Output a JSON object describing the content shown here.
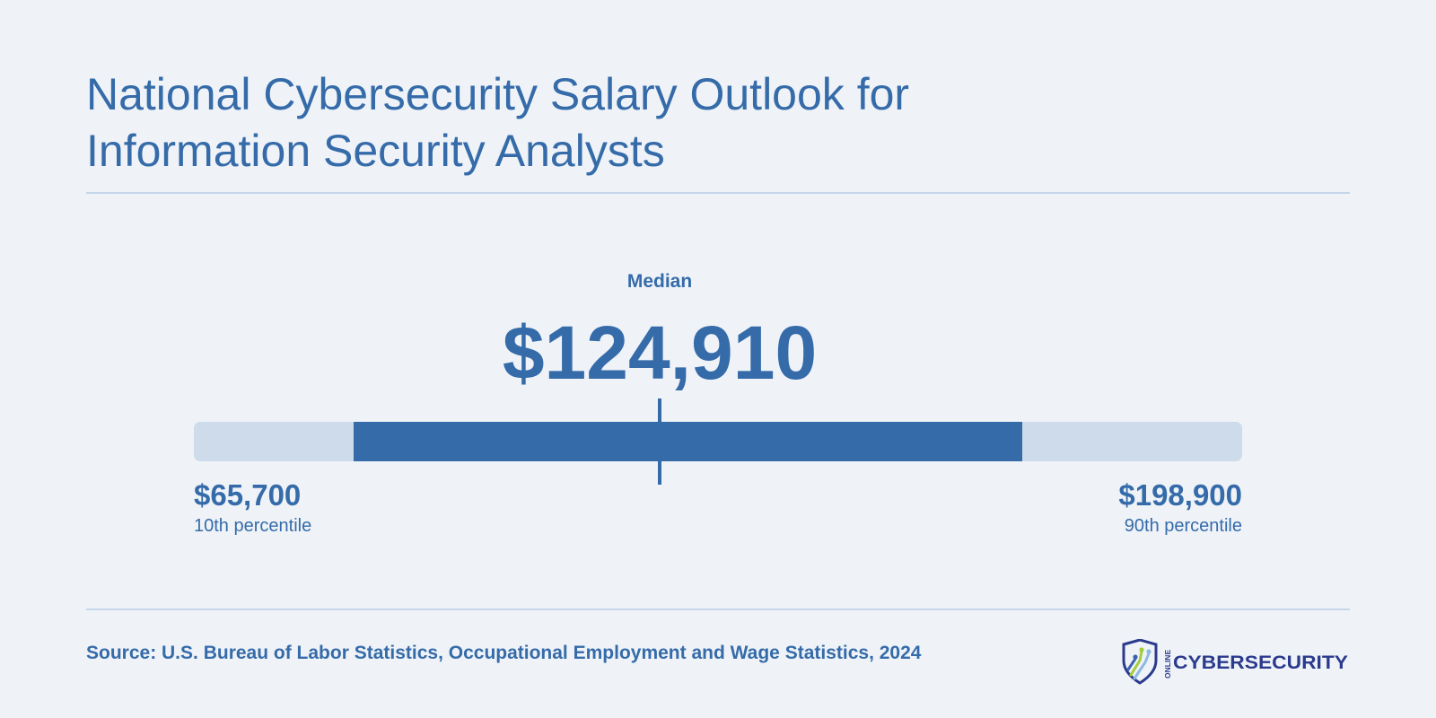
{
  "title_lines": [
    "National Cybersecurity Salary Outlook for",
    "Information Security Analysts"
  ],
  "chart_data": {
    "type": "range",
    "title": "National Cybersecurity Salary Outlook for Information Security Analysts",
    "median": {
      "label": "Median",
      "display": "$124,910",
      "value": 124910
    },
    "low": {
      "display": "$65,700",
      "value": 65700,
      "label": "10th percentile"
    },
    "high": {
      "display": "$198,900",
      "value": 198900,
      "label": "90th percentile"
    },
    "highlighted_range": [
      86000,
      171000
    ],
    "scale": [
      65700,
      198900
    ]
  },
  "source": "Source: U.S. Bureau of Labor Statistics, Occupational Employment and Wage Statistics, 2024",
  "logo": {
    "small_text": "ONLINE",
    "main_text": "CYBERSECURITY",
    "icon": "shield-circuit-icon"
  },
  "colors": {
    "background": "#eff3f8",
    "accent": "#356ba9",
    "track": "#cddbea",
    "rule": "#c5d6ea",
    "logo_navy": "#2b3a8c",
    "logo_green": "#a4cc3a"
  }
}
